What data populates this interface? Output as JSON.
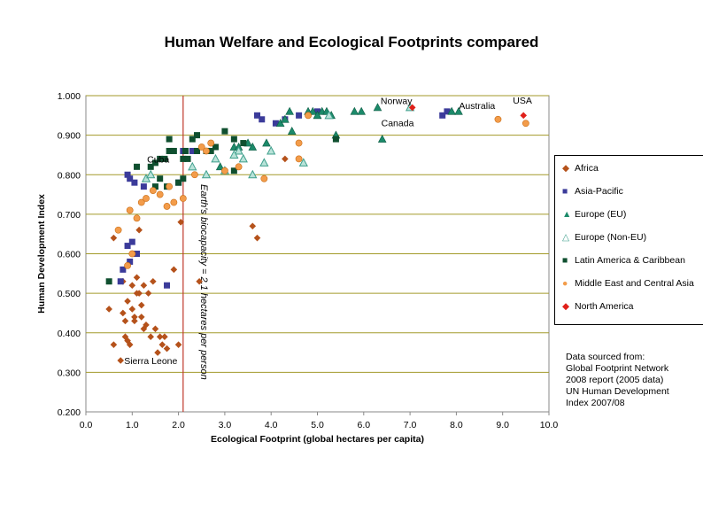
{
  "chart_data": {
    "type": "scatter",
    "title": "Human Welfare and Ecological Footprints compared",
    "xlabel": "Ecological Footprint (global hectares per capita)",
    "ylabel": "Human Development Index",
    "xlim": [
      0,
      10
    ],
    "ylim": [
      0.2,
      1.0
    ],
    "x_ticks": [
      "0.0",
      "1.0",
      "2.0",
      "3.0",
      "4.0",
      "5.0",
      "6.0",
      "7.0",
      "8.0",
      "9.0",
      "10.0"
    ],
    "y_ticks": [
      "0.200",
      "0.300",
      "0.400",
      "0.500",
      "0.600",
      "0.700",
      "0.800",
      "0.900",
      "1.000"
    ],
    "grid": "horizontal",
    "legend_position": "right",
    "reference_line": {
      "x": 2.1,
      "label": "Earth's biocapacity = 2.1 hectares per person",
      "color": "#c0392b"
    },
    "series": [
      {
        "name": "Africa",
        "marker": "diamond",
        "color": "#b5521b",
        "points": [
          [
            0.5,
            0.46
          ],
          [
            0.6,
            0.64
          ],
          [
            0.6,
            0.37
          ],
          [
            0.75,
            0.33
          ],
          [
            0.8,
            0.45
          ],
          [
            0.8,
            0.53
          ],
          [
            0.85,
            0.43
          ],
          [
            0.9,
            0.38
          ],
          [
            0.9,
            0.48
          ],
          [
            1.0,
            0.46
          ],
          [
            1.0,
            0.52
          ],
          [
            1.05,
            0.43
          ],
          [
            1.1,
            0.5
          ],
          [
            1.1,
            0.54
          ],
          [
            1.15,
            0.66
          ],
          [
            1.2,
            0.44
          ],
          [
            1.2,
            0.47
          ],
          [
            1.25,
            0.52
          ],
          [
            1.3,
            0.42
          ],
          [
            1.35,
            0.5
          ],
          [
            1.4,
            0.39
          ],
          [
            1.45,
            0.53
          ],
          [
            1.5,
            0.41
          ],
          [
            1.55,
            0.35
          ],
          [
            1.6,
            0.39
          ],
          [
            1.7,
            0.39
          ],
          [
            1.75,
            0.36
          ],
          [
            1.9,
            0.56
          ],
          [
            2.0,
            0.37
          ],
          [
            1.15,
            0.5
          ],
          [
            0.95,
            0.37
          ],
          [
            0.85,
            0.39
          ],
          [
            1.05,
            0.44
          ],
          [
            1.25,
            0.41
          ],
          [
            1.65,
            0.37
          ],
          [
            2.05,
            0.68
          ],
          [
            2.45,
            0.53
          ],
          [
            3.6,
            0.67
          ],
          [
            3.7,
            0.64
          ],
          [
            4.3,
            0.84
          ]
        ]
      },
      {
        "name": "Asia-Pacific",
        "marker": "square",
        "color": "#3b3b9a",
        "points": [
          [
            0.75,
            0.53
          ],
          [
            0.8,
            0.56
          ],
          [
            0.9,
            0.62
          ],
          [
            0.95,
            0.58
          ],
          [
            1.0,
            0.63
          ],
          [
            1.05,
            0.78
          ],
          [
            0.9,
            0.8
          ],
          [
            0.95,
            0.79
          ],
          [
            1.1,
            0.6
          ],
          [
            1.25,
            0.77
          ],
          [
            1.75,
            0.52
          ],
          [
            2.0,
            0.78
          ],
          [
            2.1,
            0.86
          ],
          [
            2.3,
            0.86
          ],
          [
            3.8,
            0.94
          ],
          [
            4.1,
            0.93
          ],
          [
            4.3,
            0.94
          ],
          [
            4.6,
            0.95
          ],
          [
            5.0,
            0.96
          ],
          [
            7.7,
            0.95
          ],
          [
            7.8,
            0.96
          ],
          [
            3.7,
            0.95
          ]
        ]
      },
      {
        "name": "Europe (EU)",
        "marker": "triangle",
        "color": "#1c8a6a",
        "points": [
          [
            2.9,
            0.82
          ],
          [
            3.2,
            0.87
          ],
          [
            3.3,
            0.87
          ],
          [
            3.5,
            0.88
          ],
          [
            3.6,
            0.87
          ],
          [
            3.9,
            0.88
          ],
          [
            4.2,
            0.93
          ],
          [
            4.3,
            0.94
          ],
          [
            4.4,
            0.96
          ],
          [
            4.45,
            0.91
          ],
          [
            4.8,
            0.96
          ],
          [
            4.9,
            0.96
          ],
          [
            5.0,
            0.95
          ],
          [
            5.1,
            0.96
          ],
          [
            5.2,
            0.96
          ],
          [
            5.4,
            0.9
          ],
          [
            5.8,
            0.96
          ],
          [
            5.95,
            0.96
          ],
          [
            6.3,
            0.97
          ],
          [
            7.9,
            0.96
          ],
          [
            8.05,
            0.96
          ],
          [
            6.4,
            0.89
          ],
          [
            5.0,
            0.95
          ],
          [
            5.3,
            0.95
          ]
        ]
      },
      {
        "name": "Europe (Non-EU)",
        "marker": "triangle-open",
        "color": "#3f9f8c",
        "points": [
          [
            1.3,
            0.79
          ],
          [
            1.4,
            0.8
          ],
          [
            2.3,
            0.82
          ],
          [
            2.6,
            0.8
          ],
          [
            2.8,
            0.84
          ],
          [
            3.0,
            0.81
          ],
          [
            3.3,
            0.86
          ],
          [
            3.6,
            0.8
          ],
          [
            3.85,
            0.83
          ],
          [
            4.0,
            0.86
          ],
          [
            4.7,
            0.83
          ],
          [
            7.0,
            0.97
          ],
          [
            3.2,
            0.85
          ],
          [
            3.4,
            0.84
          ],
          [
            5.25,
            0.95
          ]
        ]
      },
      {
        "name": "Latin America & Caribbean",
        "marker": "square",
        "color": "#0f4f2f",
        "points": [
          [
            0.5,
            0.53
          ],
          [
            1.1,
            0.82
          ],
          [
            1.4,
            0.82
          ],
          [
            1.5,
            0.77
          ],
          [
            1.5,
            0.83
          ],
          [
            1.6,
            0.79
          ],
          [
            1.7,
            0.84
          ],
          [
            1.75,
            0.77
          ],
          [
            1.8,
            0.86
          ],
          [
            1.9,
            0.86
          ],
          [
            2.0,
            0.78
          ],
          [
            2.1,
            0.79
          ],
          [
            2.1,
            0.84
          ],
          [
            2.15,
            0.86
          ],
          [
            2.3,
            0.89
          ],
          [
            2.4,
            0.86
          ],
          [
            2.4,
            0.9
          ],
          [
            2.6,
            0.86
          ],
          [
            2.8,
            0.87
          ],
          [
            3.0,
            0.91
          ],
          [
            3.2,
            0.89
          ],
          [
            3.4,
            0.88
          ],
          [
            5.4,
            0.89
          ],
          [
            1.8,
            0.89
          ],
          [
            2.2,
            0.84
          ],
          [
            2.7,
            0.86
          ],
          [
            3.2,
            0.81
          ],
          [
            1.6,
            0.84
          ]
        ]
      },
      {
        "name": "Middle East and Central Asia",
        "marker": "circle",
        "color": "#f39c4a",
        "points": [
          [
            0.7,
            0.66
          ],
          [
            0.9,
            0.57
          ],
          [
            0.95,
            0.71
          ],
          [
            1.0,
            0.6
          ],
          [
            1.1,
            0.69
          ],
          [
            1.2,
            0.73
          ],
          [
            1.3,
            0.74
          ],
          [
            1.45,
            0.76
          ],
          [
            1.6,
            0.75
          ],
          [
            1.75,
            0.72
          ],
          [
            1.8,
            0.77
          ],
          [
            1.9,
            0.73
          ],
          [
            2.1,
            0.74
          ],
          [
            2.5,
            0.87
          ],
          [
            2.6,
            0.86
          ],
          [
            2.7,
            0.88
          ],
          [
            3.0,
            0.81
          ],
          [
            3.3,
            0.82
          ],
          [
            3.85,
            0.79
          ],
          [
            4.6,
            0.84
          ],
          [
            4.6,
            0.88
          ],
          [
            4.8,
            0.95
          ],
          [
            8.9,
            0.94
          ],
          [
            9.5,
            0.93
          ],
          [
            2.35,
            0.8
          ]
        ]
      },
      {
        "name": "North America",
        "marker": "diamond",
        "color": "#e0201a",
        "points": [
          [
            7.05,
            0.97
          ],
          [
            9.45,
            0.95
          ]
        ]
      }
    ],
    "annotations": [
      {
        "text": "Cuba",
        "x": 1.8,
        "y": 0.84
      },
      {
        "text": "Norway",
        "x": 6.9,
        "y": 0.97
      },
      {
        "text": "Canada",
        "x": 6.8,
        "y": 0.95
      },
      {
        "text": "Australia",
        "x": 8.0,
        "y": 0.96
      },
      {
        "text": "USA",
        "x": 9.45,
        "y": 0.96
      },
      {
        "text": "Sierra Leone",
        "x": 0.75,
        "y": 0.33
      }
    ]
  },
  "legend_items": [
    {
      "label": "Africa",
      "color": "#b5521b",
      "marker": "diamond"
    },
    {
      "label": "Asia-Pacific",
      "color": "#3b3b9a",
      "marker": "square"
    },
    {
      "label": "Europe (EU)",
      "color": "#1c8a6a",
      "marker": "triangle"
    },
    {
      "label": "Europe (Non-EU)",
      "color": "#3f9f8c",
      "marker": "triangle-open"
    },
    {
      "label": "Latin America & Caribbean",
      "color": "#0f4f2f",
      "marker": "square"
    },
    {
      "label": "Middle East and Central Asia",
      "color": "#f39c4a",
      "marker": "circle"
    },
    {
      "label": "North America",
      "color": "#e0201a",
      "marker": "diamond"
    }
  ],
  "source_note": [
    "Data sourced from:",
    "Global Footprint Network",
    "2008 report (2005 data)",
    "UN Human Development",
    "Index 2007/08"
  ]
}
